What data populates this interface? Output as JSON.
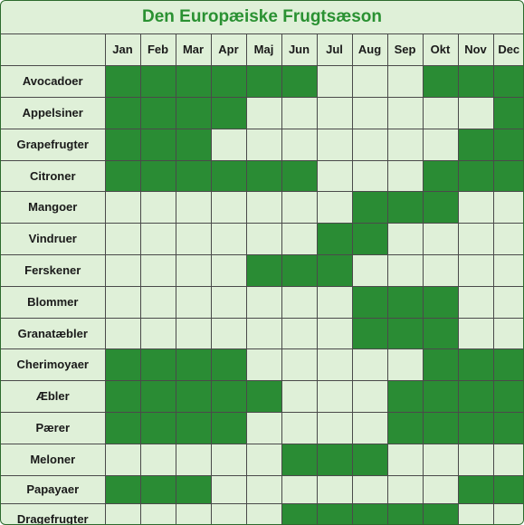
{
  "chart_data": {
    "type": "table",
    "title": "Den Europæiske Frugtsæson",
    "months": [
      "Jan",
      "Feb",
      "Mar",
      "Apr",
      "Maj",
      "Jun",
      "Jul",
      "Aug",
      "Sep",
      "Okt",
      "Nov",
      "Dec"
    ],
    "rows": [
      {
        "label": "Avocadoer",
        "season": [
          1,
          1,
          1,
          1,
          1,
          1,
          0,
          0,
          0,
          1,
          1,
          1
        ]
      },
      {
        "label": "Appelsiner",
        "season": [
          1,
          1,
          1,
          1,
          0,
          0,
          0,
          0,
          0,
          0,
          0,
          1
        ]
      },
      {
        "label": "Grapefrugter",
        "season": [
          1,
          1,
          1,
          0,
          0,
          0,
          0,
          0,
          0,
          0,
          1,
          1
        ]
      },
      {
        "label": "Citroner",
        "season": [
          1,
          1,
          1,
          1,
          1,
          1,
          0,
          0,
          0,
          1,
          1,
          1
        ]
      },
      {
        "label": "Mangoer",
        "season": [
          0,
          0,
          0,
          0,
          0,
          0,
          0,
          1,
          1,
          1,
          0,
          0
        ]
      },
      {
        "label": "Vindruer",
        "season": [
          0,
          0,
          0,
          0,
          0,
          0,
          1,
          1,
          0,
          0,
          0,
          0
        ]
      },
      {
        "label": "Ferskener",
        "season": [
          0,
          0,
          0,
          0,
          1,
          1,
          1,
          0,
          0,
          0,
          0,
          0
        ]
      },
      {
        "label": "Blommer",
        "season": [
          0,
          0,
          0,
          0,
          0,
          0,
          0,
          1,
          1,
          1,
          0,
          0
        ]
      },
      {
        "label": "Granatæbler",
        "season": [
          0,
          0,
          0,
          0,
          0,
          0,
          0,
          1,
          1,
          1,
          0,
          0
        ]
      },
      {
        "label": "Cherimoyaer",
        "season": [
          1,
          1,
          1,
          1,
          0,
          0,
          0,
          0,
          0,
          1,
          1,
          1
        ]
      },
      {
        "label": "Æbler",
        "season": [
          1,
          1,
          1,
          1,
          1,
          0,
          0,
          0,
          1,
          1,
          1,
          1
        ]
      },
      {
        "label": "Pærer",
        "season": [
          1,
          1,
          1,
          1,
          0,
          0,
          0,
          0,
          1,
          1,
          1,
          1
        ]
      },
      {
        "label": "Meloner",
        "season": [
          0,
          0,
          0,
          0,
          0,
          1,
          1,
          1,
          0,
          0,
          0,
          0
        ]
      },
      {
        "label": "Papayaer",
        "season": [
          1,
          1,
          1,
          0,
          0,
          0,
          0,
          0,
          0,
          0,
          1,
          1
        ]
      },
      {
        "label": "Dragefrugter",
        "season": [
          0,
          0,
          0,
          0,
          0,
          1,
          1,
          1,
          1,
          1,
          0,
          0
        ]
      }
    ],
    "colors": {
      "in_season": "#2a8c34",
      "off_season": "#dff0d8",
      "title": "#2a9132",
      "grid": "#4a4a4a"
    }
  }
}
